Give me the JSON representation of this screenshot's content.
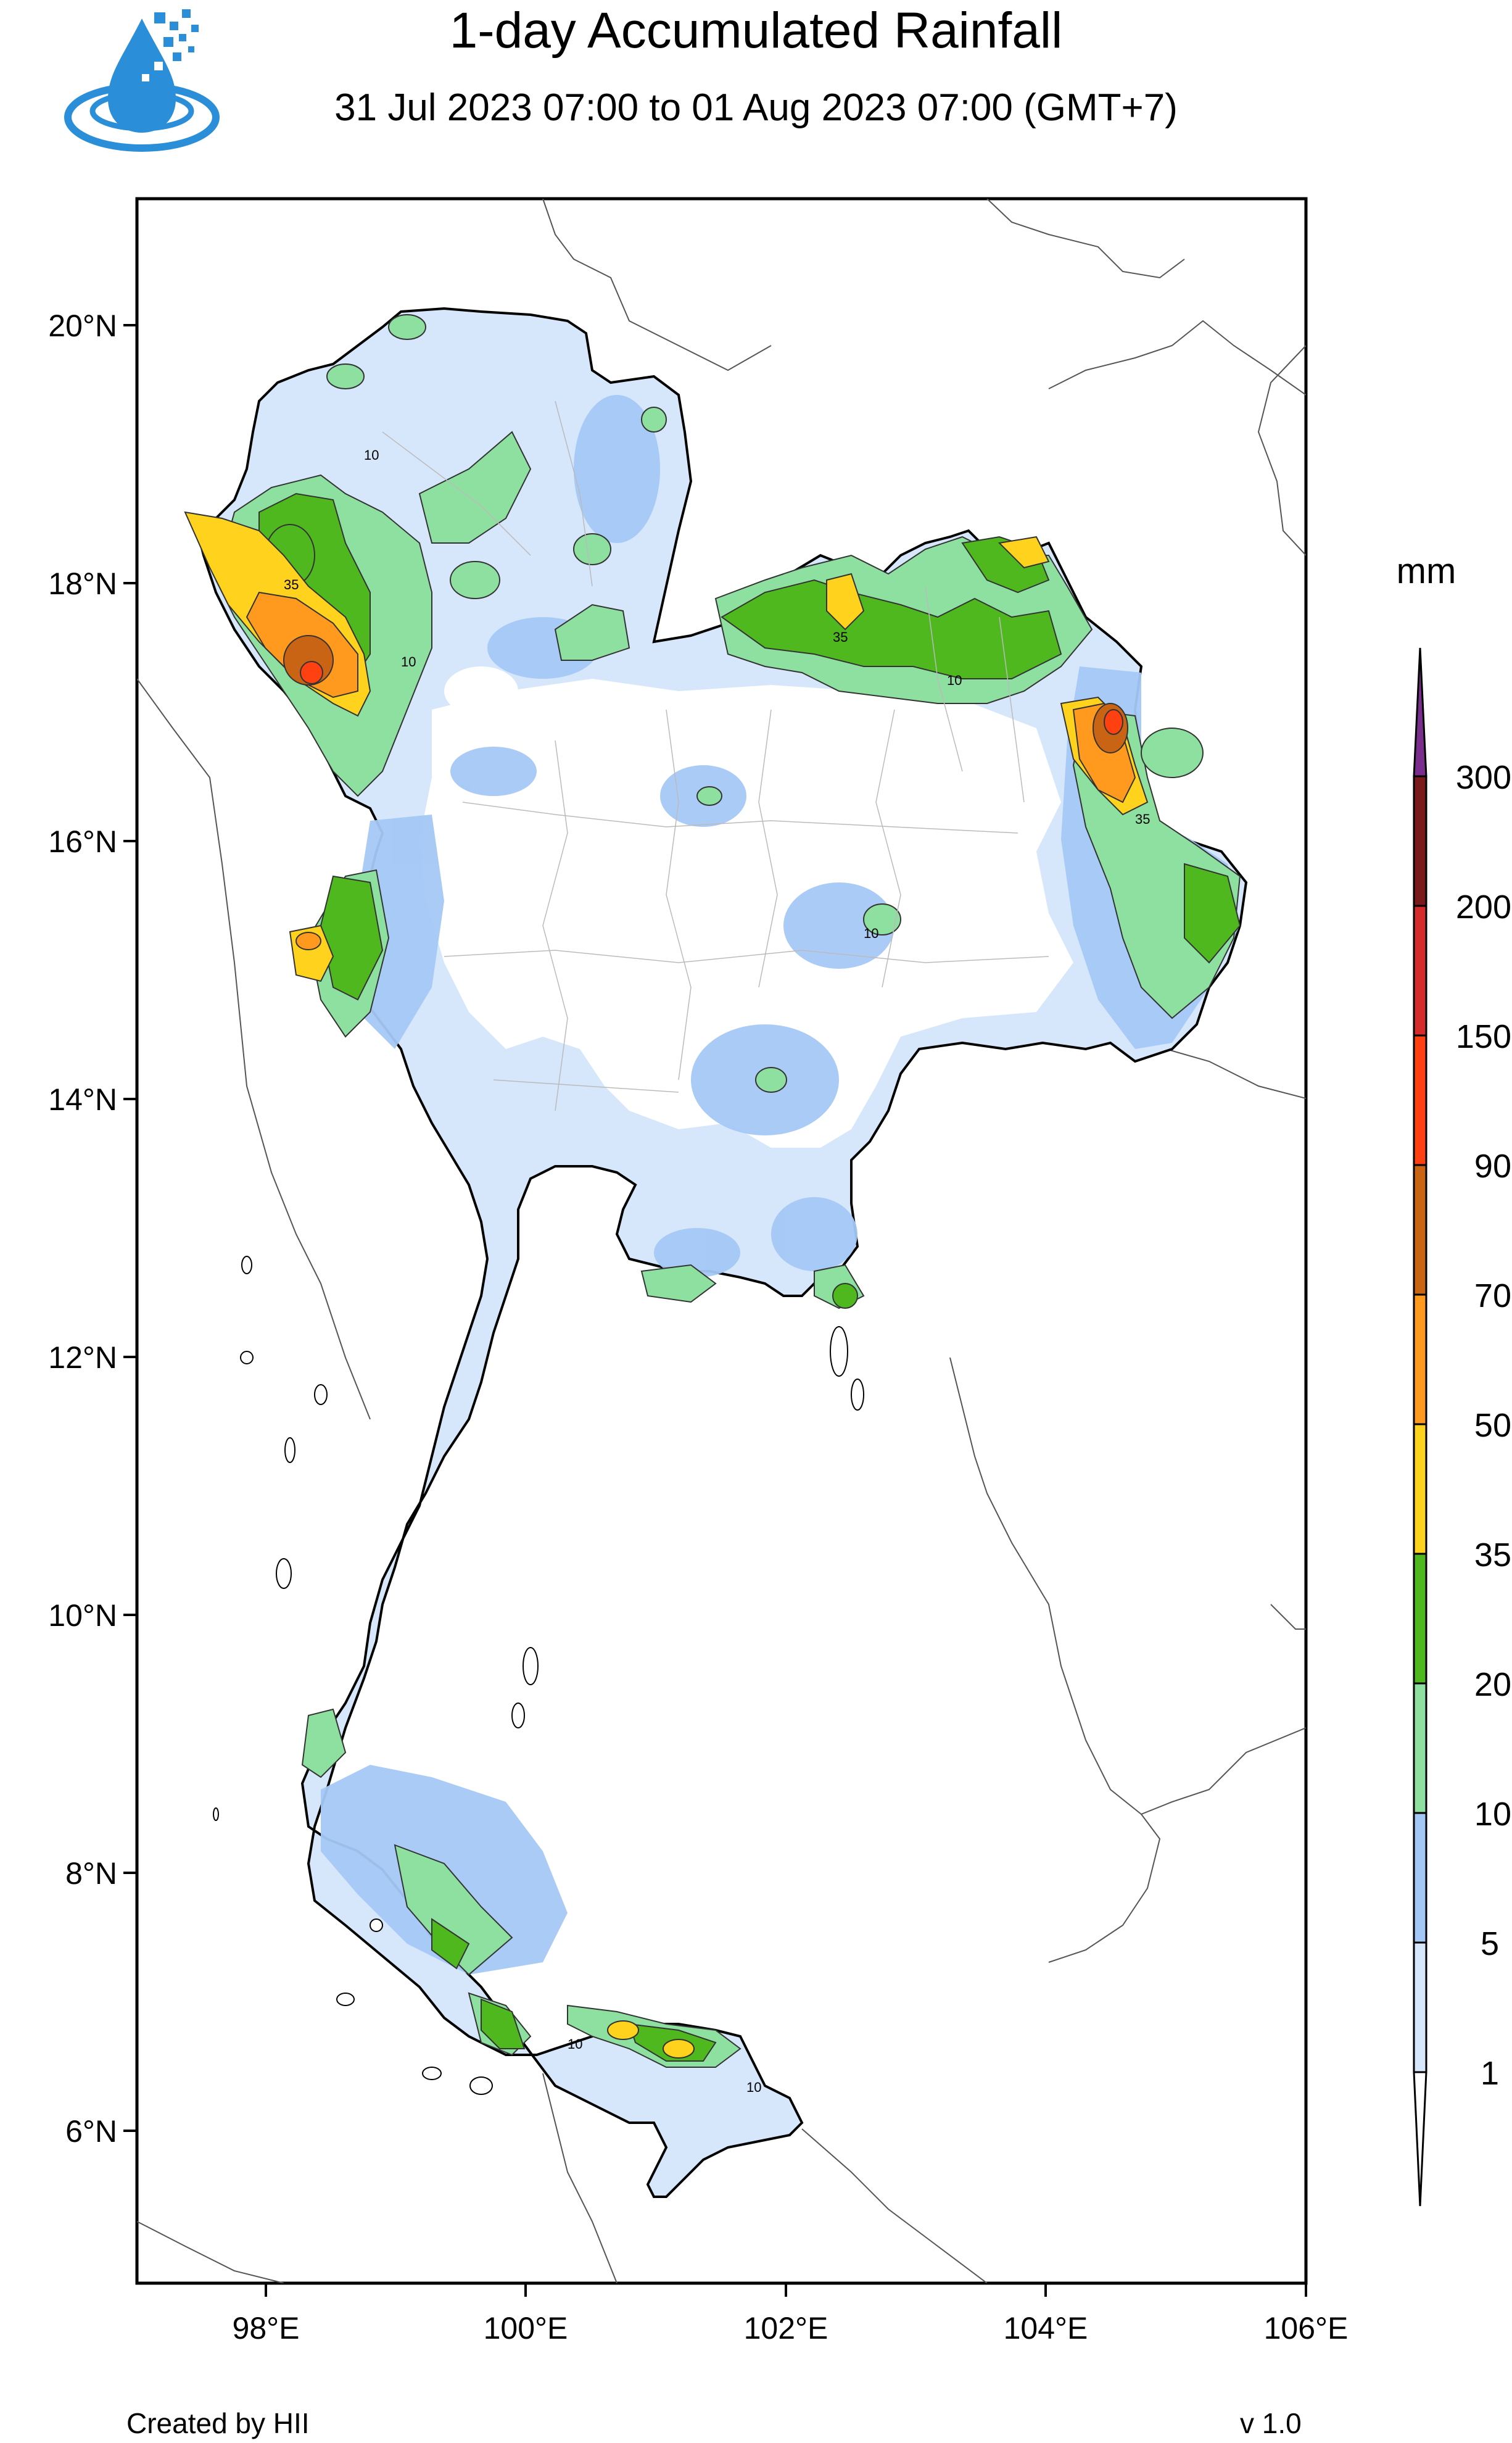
{
  "header": {
    "title": "1-day Accumulated Rainfall",
    "subtitle": "31 Jul 2023 07:00 to 01 Aug 2023 07:00 (GMT+7)"
  },
  "footer": {
    "credit": "Created by HII",
    "version": "v 1.0"
  },
  "axes": {
    "y_ticks": [
      "20°N",
      "18°N",
      "16°N",
      "14°N",
      "12°N",
      "10°N",
      "8°N",
      "6°N"
    ],
    "x_ticks": [
      "98°E",
      "100°E",
      "102°E",
      "104°E",
      "106°E"
    ]
  },
  "colorbar": {
    "unit": "mm",
    "levels": [
      "300",
      "200",
      "150",
      "90",
      "70",
      "50",
      "35",
      "20",
      "10",
      "5",
      "1"
    ],
    "colors": [
      "#7b2d8e",
      "#7a1a1a",
      "#d62b2b",
      "#ff4010",
      "#c86414",
      "#ff9a1e",
      "#ffd21e",
      "#4fb81e",
      "#8ee0a0",
      "#a4c8f5",
      "#d6e6fb"
    ]
  },
  "contour_labels": [
    "10",
    "35",
    "10",
    "35",
    "10",
    "35",
    "10",
    "10",
    "10"
  ],
  "colors": {
    "land": "#ffffff",
    "rain_1_5": "#d6e6fb",
    "rain_5_10": "#a4c8f5",
    "rain_10_20": "#8ee0a0",
    "rain_20_35": "#4fb81e",
    "rain_35_50": "#ffd21e",
    "rain_50_70": "#ff9a1e",
    "rain_70_90": "#c86414",
    "rain_90_150": "#ff4010"
  }
}
